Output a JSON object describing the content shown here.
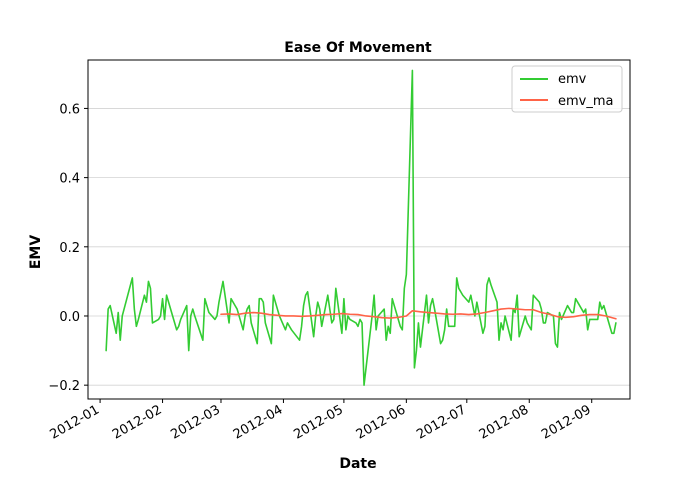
{
  "chart_data": {
    "type": "line",
    "title": "Ease Of Movement",
    "xlabel": "Date",
    "ylabel": "EMV",
    "x_type": "date",
    "xlim": [
      "2011-12-26",
      "2012-09-20"
    ],
    "ylim": [
      -0.24,
      0.74
    ],
    "y_ticks": [
      -0.2,
      0.0,
      0.2,
      0.4,
      0.6
    ],
    "y_tick_labels": [
      "−0.2",
      "0.0",
      "0.2",
      "0.4",
      "0.6"
    ],
    "x_ticks": [
      "2012-01-01",
      "2012-02-01",
      "2012-03-01",
      "2012-04-01",
      "2012-05-01",
      "2012-06-01",
      "2012-07-01",
      "2012-08-01",
      "2012-09-01"
    ],
    "x_tick_labels": [
      "2012-01",
      "2012-02",
      "2012-03",
      "2012-04",
      "2012-05",
      "2012-06",
      "2012-07",
      "2012-08",
      "2012-09"
    ],
    "grid": "horizontal",
    "legend_position": "top-right",
    "series": [
      {
        "name": "emv",
        "color": "#33cc33",
        "points": [
          [
            "2012-01-04",
            -0.1
          ],
          [
            "2012-01-05",
            0.02
          ],
          [
            "2012-01-06",
            0.03
          ],
          [
            "2012-01-09",
            -0.05
          ],
          [
            "2012-01-10",
            0.01
          ],
          [
            "2012-01-11",
            -0.07
          ],
          [
            "2012-01-12",
            0.0
          ],
          [
            "2012-01-17",
            0.11
          ],
          [
            "2012-01-18",
            0.02
          ],
          [
            "2012-01-19",
            -0.03
          ],
          [
            "2012-01-20",
            -0.01
          ],
          [
            "2012-01-23",
            0.06
          ],
          [
            "2012-01-24",
            0.04
          ],
          [
            "2012-01-25",
            0.1
          ],
          [
            "2012-01-26",
            0.08
          ],
          [
            "2012-01-27",
            -0.02
          ],
          [
            "2012-01-30",
            -0.01
          ],
          [
            "2012-01-31",
            0.0
          ],
          [
            "2012-02-01",
            0.05
          ],
          [
            "2012-02-02",
            -0.01
          ],
          [
            "2012-02-03",
            0.06
          ],
          [
            "2012-02-06",
            0.0
          ],
          [
            "2012-02-07",
            -0.02
          ],
          [
            "2012-02-08",
            -0.04
          ],
          [
            "2012-02-09",
            -0.03
          ],
          [
            "2012-02-10",
            -0.01
          ],
          [
            "2012-02-13",
            0.03
          ],
          [
            "2012-02-14",
            -0.1
          ],
          [
            "2012-02-15",
            0.0
          ],
          [
            "2012-02-16",
            0.02
          ],
          [
            "2012-02-17",
            0.0
          ],
          [
            "2012-02-21",
            -0.07
          ],
          [
            "2012-02-22",
            0.05
          ],
          [
            "2012-02-23",
            0.03
          ],
          [
            "2012-02-24",
            0.01
          ],
          [
            "2012-02-27",
            -0.01
          ],
          [
            "2012-02-28",
            0.0
          ],
          [
            "2012-02-29",
            0.04
          ],
          [
            "2012-03-01",
            0.07
          ],
          [
            "2012-03-02",
            0.1
          ],
          [
            "2012-03-05",
            -0.02
          ],
          [
            "2012-03-06",
            0.05
          ],
          [
            "2012-03-07",
            0.04
          ],
          [
            "2012-03-08",
            0.03
          ],
          [
            "2012-03-09",
            0.02
          ],
          [
            "2012-03-12",
            -0.04
          ],
          [
            "2012-03-13",
            0.0
          ],
          [
            "2012-03-14",
            0.02
          ],
          [
            "2012-03-15",
            0.03
          ],
          [
            "2012-03-16",
            -0.02
          ],
          [
            "2012-03-19",
            -0.08
          ],
          [
            "2012-03-20",
            0.05
          ],
          [
            "2012-03-21",
            0.05
          ],
          [
            "2012-03-22",
            0.04
          ],
          [
            "2012-03-23",
            -0.02
          ],
          [
            "2012-03-26",
            -0.08
          ],
          [
            "2012-03-27",
            0.06
          ],
          [
            "2012-03-28",
            0.04
          ],
          [
            "2012-03-29",
            0.02
          ],
          [
            "2012-03-30",
            0.0
          ],
          [
            "2012-04-02",
            -0.04
          ],
          [
            "2012-04-03",
            -0.02
          ],
          [
            "2012-04-04",
            -0.03
          ],
          [
            "2012-04-05",
            -0.04
          ],
          [
            "2012-04-09",
            -0.07
          ],
          [
            "2012-04-10",
            -0.03
          ],
          [
            "2012-04-11",
            0.03
          ],
          [
            "2012-04-12",
            0.06
          ],
          [
            "2012-04-13",
            0.07
          ],
          [
            "2012-04-16",
            -0.06
          ],
          [
            "2012-04-17",
            0.0
          ],
          [
            "2012-04-18",
            0.04
          ],
          [
            "2012-04-19",
            0.02
          ],
          [
            "2012-04-20",
            -0.03
          ],
          [
            "2012-04-23",
            0.06
          ],
          [
            "2012-04-24",
            0.02
          ],
          [
            "2012-04-25",
            -0.02
          ],
          [
            "2012-04-26",
            -0.01
          ],
          [
            "2012-04-27",
            0.08
          ],
          [
            "2012-04-30",
            -0.05
          ],
          [
            "2012-05-01",
            0.05
          ],
          [
            "2012-05-02",
            -0.04
          ],
          [
            "2012-05-03",
            0.0
          ],
          [
            "2012-05-04",
            -0.01
          ],
          [
            "2012-05-07",
            -0.02
          ],
          [
            "2012-05-08",
            -0.03
          ],
          [
            "2012-05-09",
            -0.01
          ],
          [
            "2012-05-10",
            -0.02
          ],
          [
            "2012-05-11",
            -0.2
          ],
          [
            "2012-05-14",
            -0.05
          ],
          [
            "2012-05-15",
            0.0
          ],
          [
            "2012-05-16",
            0.06
          ],
          [
            "2012-05-17",
            -0.04
          ],
          [
            "2012-05-18",
            0.0
          ],
          [
            "2012-05-21",
            0.02
          ],
          [
            "2012-05-22",
            -0.07
          ],
          [
            "2012-05-23",
            -0.03
          ],
          [
            "2012-05-24",
            -0.05
          ],
          [
            "2012-05-25",
            0.05
          ],
          [
            "2012-05-29",
            -0.03
          ],
          [
            "2012-05-30",
            -0.04
          ],
          [
            "2012-05-31",
            0.08
          ],
          [
            "2012-06-01",
            0.12
          ],
          [
            "2012-06-04",
            0.71
          ],
          [
            "2012-06-05",
            -0.15
          ],
          [
            "2012-06-06",
            -0.1
          ],
          [
            "2012-06-07",
            -0.02
          ],
          [
            "2012-06-08",
            -0.09
          ],
          [
            "2012-06-11",
            0.06
          ],
          [
            "2012-06-12",
            -0.02
          ],
          [
            "2012-06-13",
            0.03
          ],
          [
            "2012-06-14",
            0.05
          ],
          [
            "2012-06-15",
            0.02
          ],
          [
            "2012-06-18",
            -0.08
          ],
          [
            "2012-06-19",
            -0.07
          ],
          [
            "2012-06-20",
            -0.04
          ],
          [
            "2012-06-21",
            0.02
          ],
          [
            "2012-06-22",
            -0.03
          ],
          [
            "2012-06-25",
            -0.03
          ],
          [
            "2012-06-26",
            0.11
          ],
          [
            "2012-06-27",
            0.08
          ],
          [
            "2012-06-28",
            0.07
          ],
          [
            "2012-06-29",
            0.06
          ],
          [
            "2012-07-02",
            0.04
          ],
          [
            "2012-07-03",
            0.06
          ],
          [
            "2012-07-05",
            0.0
          ],
          [
            "2012-07-06",
            0.04
          ],
          [
            "2012-07-09",
            -0.05
          ],
          [
            "2012-07-10",
            -0.03
          ],
          [
            "2012-07-11",
            0.09
          ],
          [
            "2012-07-12",
            0.11
          ],
          [
            "2012-07-13",
            0.09
          ],
          [
            "2012-07-16",
            0.04
          ],
          [
            "2012-07-17",
            -0.07
          ],
          [
            "2012-07-18",
            -0.02
          ],
          [
            "2012-07-19",
            -0.04
          ],
          [
            "2012-07-20",
            0.0
          ],
          [
            "2012-07-23",
            -0.07
          ],
          [
            "2012-07-24",
            0.02
          ],
          [
            "2012-07-25",
            0.01
          ],
          [
            "2012-07-26",
            0.06
          ],
          [
            "2012-07-27",
            -0.06
          ],
          [
            "2012-07-30",
            0.0
          ],
          [
            "2012-07-31",
            -0.02
          ],
          [
            "2012-08-01",
            -0.03
          ],
          [
            "2012-08-02",
            -0.04
          ],
          [
            "2012-08-03",
            0.06
          ],
          [
            "2012-08-06",
            0.04
          ],
          [
            "2012-08-07",
            0.02
          ],
          [
            "2012-08-08",
            -0.02
          ],
          [
            "2012-08-09",
            -0.02
          ],
          [
            "2012-08-10",
            0.01
          ],
          [
            "2012-08-13",
            0.0
          ],
          [
            "2012-08-14",
            -0.08
          ],
          [
            "2012-08-15",
            -0.09
          ],
          [
            "2012-08-16",
            0.01
          ],
          [
            "2012-08-17",
            -0.01
          ],
          [
            "2012-08-20",
            0.03
          ],
          [
            "2012-08-21",
            0.02
          ],
          [
            "2012-08-22",
            0.01
          ],
          [
            "2012-08-23",
            0.01
          ],
          [
            "2012-08-24",
            0.05
          ],
          [
            "2012-08-27",
            0.02
          ],
          [
            "2012-08-28",
            0.01
          ],
          [
            "2012-08-29",
            0.02
          ],
          [
            "2012-08-30",
            -0.04
          ],
          [
            "2012-08-31",
            -0.01
          ],
          [
            "2012-09-04",
            -0.01
          ],
          [
            "2012-09-05",
            0.04
          ],
          [
            "2012-09-06",
            0.02
          ],
          [
            "2012-09-07",
            0.03
          ],
          [
            "2012-09-10",
            -0.03
          ],
          [
            "2012-09-11",
            -0.05
          ],
          [
            "2012-09-12",
            -0.05
          ],
          [
            "2012-09-13",
            -0.02
          ]
        ]
      },
      {
        "name": "emv_ma",
        "color": "#ff6347",
        "points": [
          [
            "2012-03-01",
            0.005
          ],
          [
            "2012-03-05",
            0.006
          ],
          [
            "2012-03-09",
            0.004
          ],
          [
            "2012-03-13",
            0.008
          ],
          [
            "2012-03-17",
            0.01
          ],
          [
            "2012-03-21",
            0.008
          ],
          [
            "2012-03-25",
            0.004
          ],
          [
            "2012-03-29",
            0.002
          ],
          [
            "2012-04-02",
            0.0
          ],
          [
            "2012-04-06",
            0.0
          ],
          [
            "2012-04-10",
            -0.001
          ],
          [
            "2012-04-14",
            0.0
          ],
          [
            "2012-04-18",
            0.002
          ],
          [
            "2012-04-22",
            0.004
          ],
          [
            "2012-04-26",
            0.005
          ],
          [
            "2012-04-30",
            0.007
          ],
          [
            "2012-05-04",
            0.005
          ],
          [
            "2012-05-08",
            0.004
          ],
          [
            "2012-05-12",
            0.0
          ],
          [
            "2012-05-16",
            -0.002
          ],
          [
            "2012-05-20",
            -0.005
          ],
          [
            "2012-05-24",
            -0.006
          ],
          [
            "2012-05-28",
            -0.004
          ],
          [
            "2012-06-01",
            0.0
          ],
          [
            "2012-06-04",
            0.015
          ],
          [
            "2012-06-08",
            0.012
          ],
          [
            "2012-06-12",
            0.01
          ],
          [
            "2012-06-16",
            0.008
          ],
          [
            "2012-06-20",
            0.006
          ],
          [
            "2012-06-24",
            0.005
          ],
          [
            "2012-06-28",
            0.006
          ],
          [
            "2012-07-02",
            0.004
          ],
          [
            "2012-07-06",
            0.006
          ],
          [
            "2012-07-10",
            0.01
          ],
          [
            "2012-07-14",
            0.015
          ],
          [
            "2012-07-18",
            0.02
          ],
          [
            "2012-07-22",
            0.022
          ],
          [
            "2012-07-26",
            0.02
          ],
          [
            "2012-07-30",
            0.018
          ],
          [
            "2012-08-03",
            0.018
          ],
          [
            "2012-08-07",
            0.01
          ],
          [
            "2012-08-11",
            0.005
          ],
          [
            "2012-08-15",
            -0.002
          ],
          [
            "2012-08-19",
            -0.004
          ],
          [
            "2012-08-23",
            -0.002
          ],
          [
            "2012-08-27",
            0.002
          ],
          [
            "2012-08-31",
            0.004
          ],
          [
            "2012-09-04",
            0.004
          ],
          [
            "2012-09-08",
            0.0
          ],
          [
            "2012-09-13",
            -0.008
          ]
        ]
      }
    ]
  }
}
